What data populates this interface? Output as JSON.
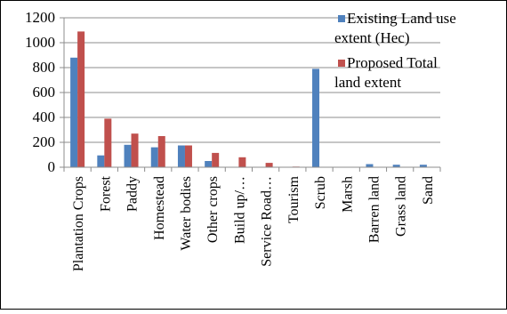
{
  "chart_data": {
    "type": "bar",
    "title": "",
    "xlabel": "",
    "ylabel": "",
    "ylim": [
      0,
      1200
    ],
    "yticks": [
      0,
      200,
      400,
      600,
      800,
      1000,
      1200
    ],
    "grid": true,
    "legend_position": "top-right",
    "categories": [
      "Plantation Crops",
      "Forest",
      "Paddy",
      "Homestead",
      "Water bodies",
      "Other crops",
      "Build up/…",
      "Service Road…",
      "Tourism",
      "Scrub",
      "Marsh",
      "Barren land",
      "Grass land",
      "Sand"
    ],
    "series": [
      {
        "name": "Existing Land use extent (Hec)",
        "legend_lines": [
          "Existing Land use",
          "extent (Hec)"
        ],
        "color": "#4f81bd",
        "values": [
          880,
          95,
          180,
          160,
          175,
          50,
          0,
          0,
          0,
          790,
          0,
          25,
          20,
          20
        ]
      },
      {
        "name": "Proposed Total land extent",
        "legend_lines": [
          "Proposed Total",
          "land extent"
        ],
        "color": "#c0504d",
        "values": [
          1090,
          390,
          270,
          250,
          175,
          115,
          80,
          35,
          5,
          0,
          0,
          0,
          0,
          0
        ]
      }
    ]
  }
}
